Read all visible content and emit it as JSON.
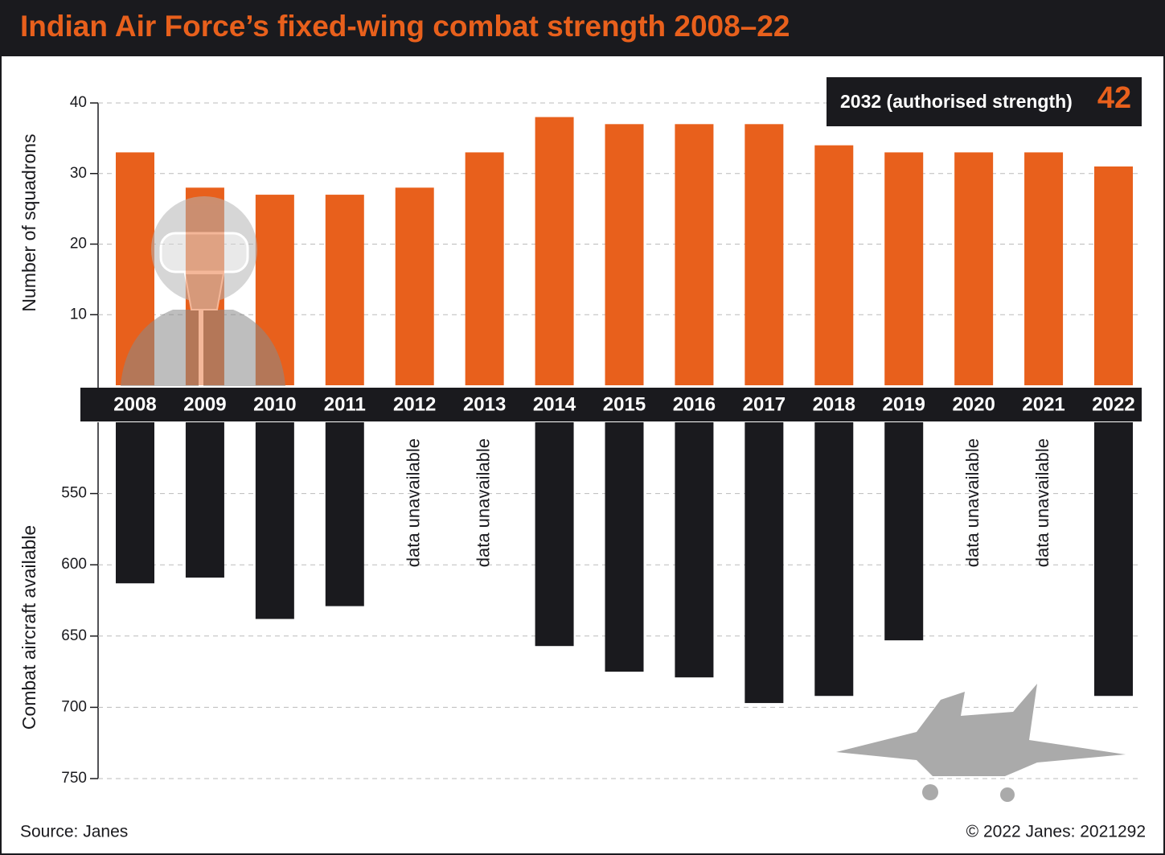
{
  "title": "Indian Air Force’s fixed-wing combat strength 2008–22",
  "source": "Source: Janes",
  "copyright": "© 2022 Janes: 2021292",
  "chart_data": [
    {
      "type": "bar",
      "y_label": "Number of squadrons",
      "categories": [
        "2008",
        "2009",
        "2010",
        "2011",
        "2012",
        "2013",
        "2014",
        "2015",
        "2016",
        "2017",
        "2018",
        "2019",
        "2020",
        "2021",
        "2022"
      ],
      "values": [
        33,
        28,
        27,
        27,
        28,
        33,
        38,
        37,
        37,
        37,
        34,
        33,
        33,
        33,
        31
      ],
      "color": "#e8601c",
      "ylim": [
        0,
        40
      ],
      "yticks": [
        10,
        20,
        30,
        40
      ],
      "grid": true,
      "annotation": {
        "label": "2032 (authorised strength)",
        "value": 42
      }
    },
    {
      "type": "bar",
      "y_label": "Combat aircraft available",
      "values": [
        613,
        609,
        638,
        629,
        null,
        null,
        657,
        675,
        679,
        697,
        692,
        653,
        null,
        null,
        692
      ],
      "missing_label": "data unavailable",
      "color": "#1a1a1e",
      "ylim": [
        500,
        750
      ],
      "yticks": [
        550,
        600,
        650,
        700,
        750
      ],
      "y_inverted": true,
      "grid": true
    }
  ]
}
